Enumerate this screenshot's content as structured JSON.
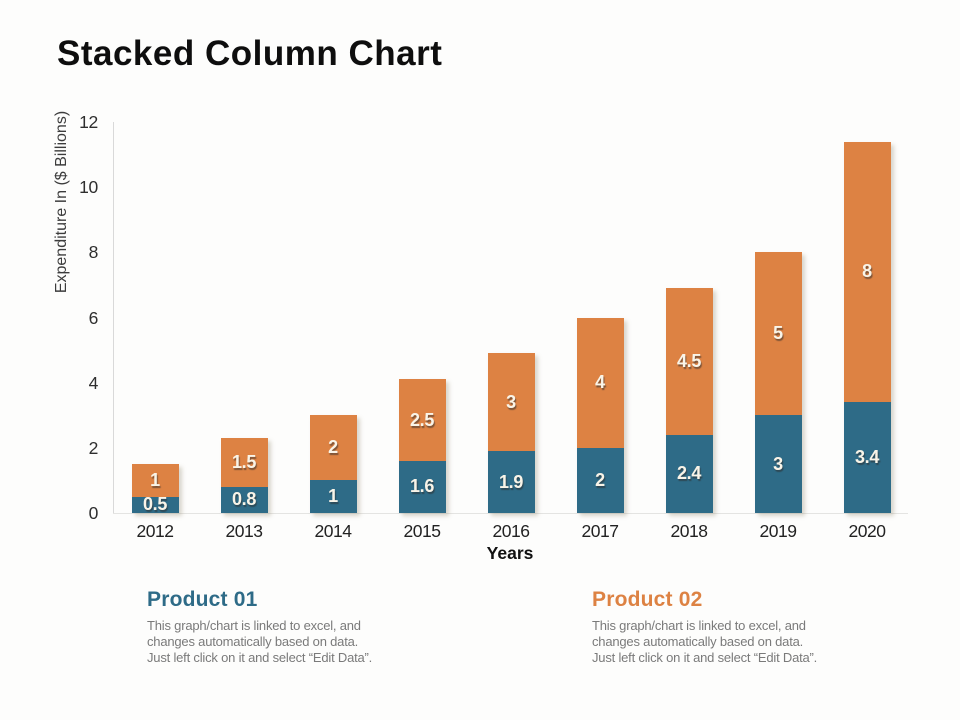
{
  "slide": {
    "title": "Stacked Column Chart"
  },
  "chart_data": {
    "type": "bar",
    "stacked": true,
    "categories": [
      "2012",
      "2013",
      "2014",
      "2015",
      "2016",
      "2017",
      "2018",
      "2019",
      "2020"
    ],
    "series": [
      {
        "name": "Product 01",
        "color": "#2E6B87",
        "values": [
          0.5,
          0.8,
          1,
          1.6,
          1.9,
          2,
          2.4,
          3,
          3.4
        ]
      },
      {
        "name": "Product 02",
        "color": "#DD8243",
        "values": [
          1,
          1.5,
          2,
          2.5,
          3,
          4,
          4.5,
          5,
          8
        ]
      }
    ],
    "xlabel": "Years",
    "ylabel": "Expenditure In ($ Billions)",
    "ylim": [
      0,
      12
    ],
    "ytick_step": 2,
    "grid": false,
    "legend_position": "none",
    "data_labels": true,
    "label_color": "#F9F4E8",
    "axis_color": "#D9D9D9",
    "tick_color": "#2E2E2E"
  },
  "footnotes": [
    {
      "heading": "Product 01",
      "color": "#2E6B87",
      "lines": [
        "This graph/chart is linked to excel, and",
        "changes automatically based on data.",
        "Just left click on it and select “Edit Data”."
      ]
    },
    {
      "heading": "Product 02",
      "color": "#DD8243",
      "lines": [
        "This graph/chart is linked to excel, and",
        "changes automatically based on data.",
        "Just left click on it and select “Edit Data”."
      ]
    }
  ]
}
